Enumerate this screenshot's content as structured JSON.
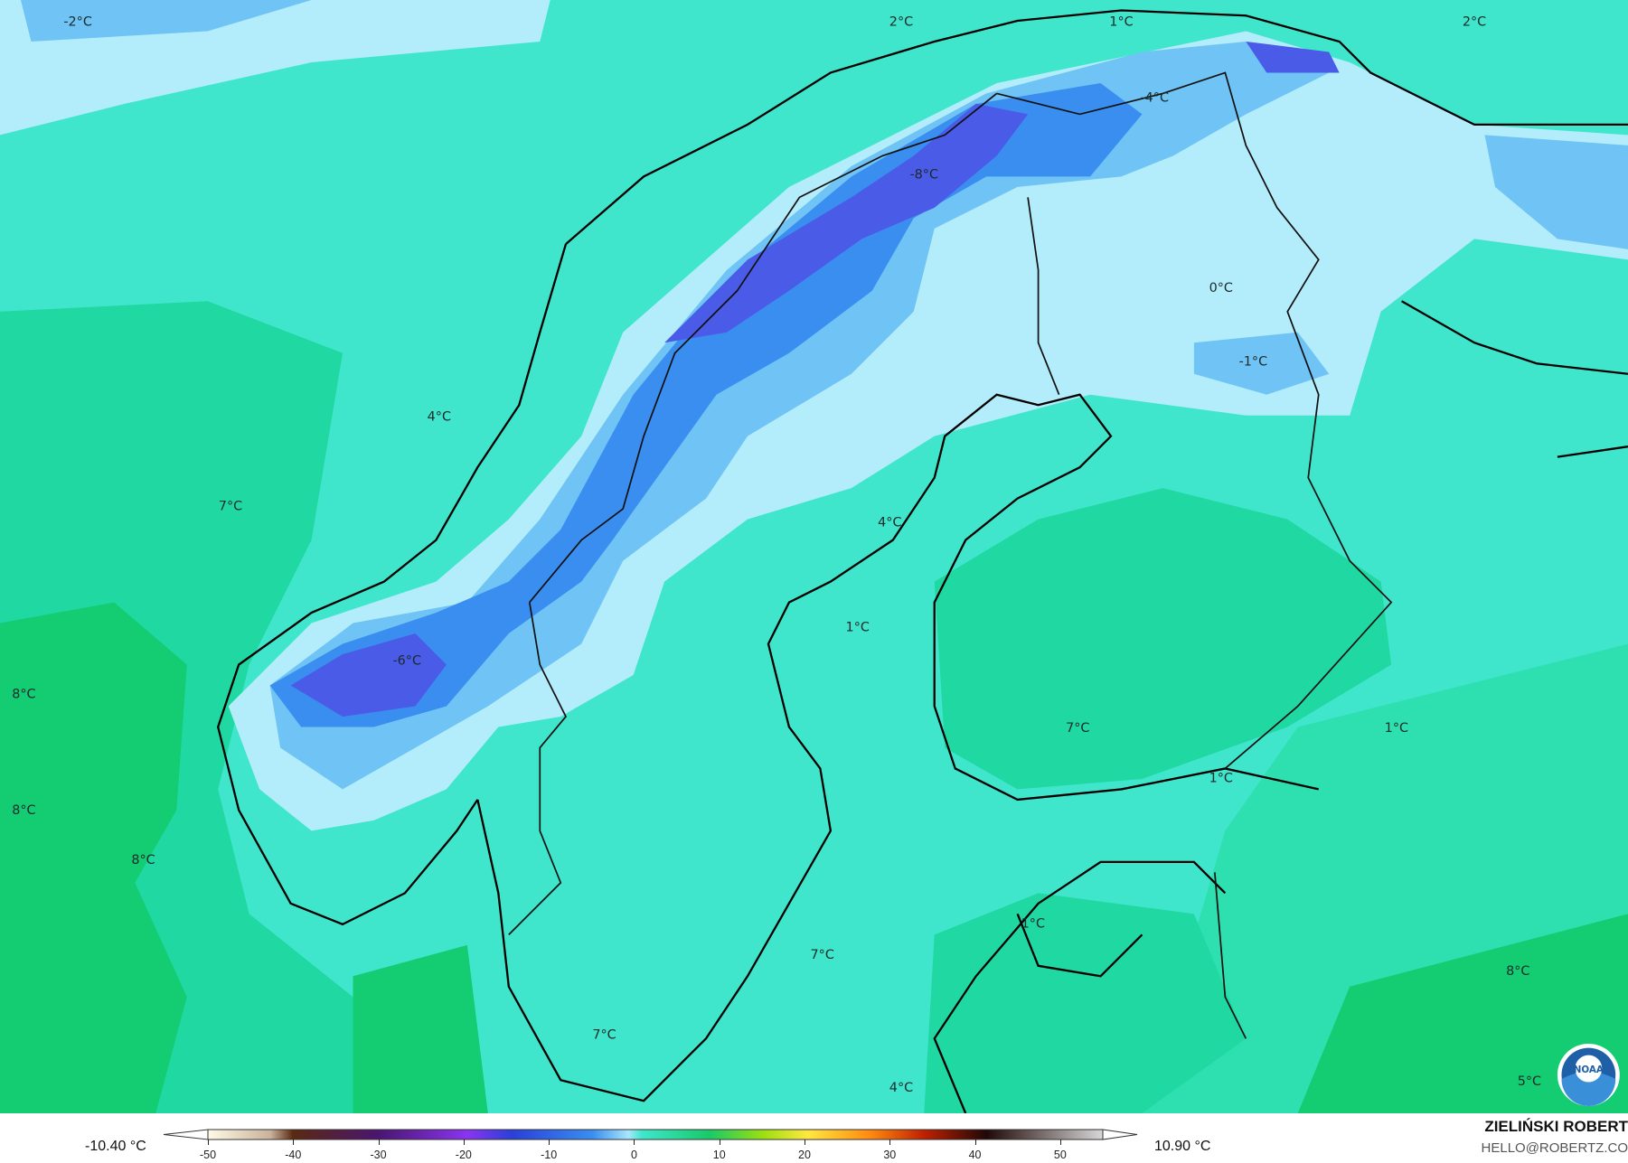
{
  "map": {
    "labels": [
      "-2°C",
      "2°C",
      "1°C",
      "2°C",
      "-4°C",
      "-8°C",
      "0°C",
      "-1°C",
      "4°C",
      "7°C",
      "4°C",
      "1°C",
      "-6°C",
      "8°C",
      "7°C",
      "1°C",
      "1°C",
      "8°C",
      "8°C",
      "1°C",
      "7°C",
      "8°C",
      "7°C",
      "4°C",
      "5°C"
    ],
    "colors": {
      "sea_teal": "#3fe6cc",
      "sea_green": "#20d8a2",
      "land_green": "#14cc72",
      "light_blue": "#b3ecfa",
      "mid_blue": "#6fc4f5",
      "blue": "#3a8ef0",
      "deep_blue": "#4a5be8"
    },
    "logo": "NOAA"
  },
  "colorbar": {
    "min_label": "-10.40 °C",
    "max_label": "10.90 °C",
    "ticks": [
      "-50",
      "-40",
      "-30",
      "-20",
      "-10",
      "0",
      "10",
      "20",
      "30",
      "40",
      "50"
    ],
    "range": [
      -50,
      55
    ]
  },
  "credit": {
    "author": "ZIELIŃSKI ROBERT",
    "email": "HELLO@ROBERTZ.CO"
  }
}
